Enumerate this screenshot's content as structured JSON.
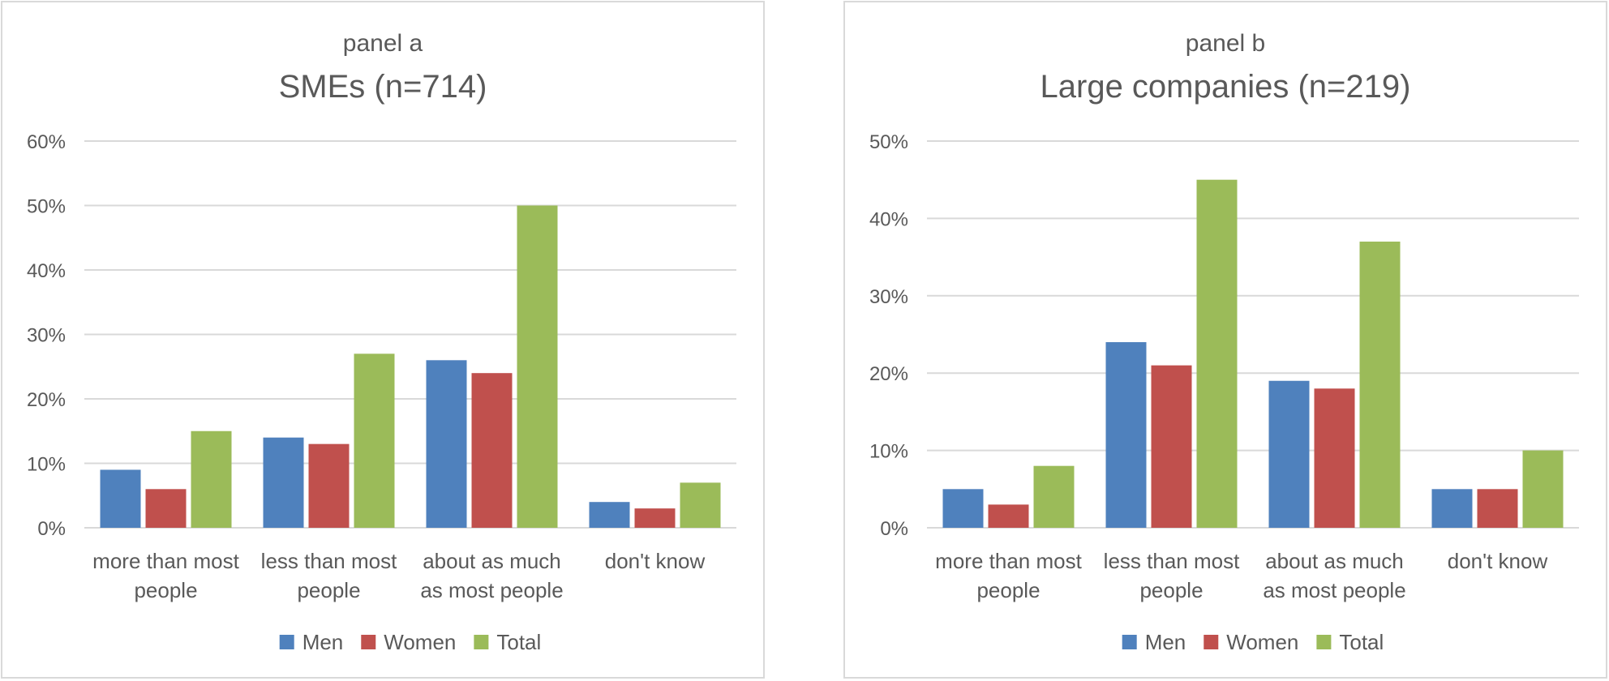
{
  "chart_data": [
    {
      "type": "bar",
      "panel_label": "panel a",
      "title": "SMEs (n=714)",
      "categories": [
        [
          "more than most",
          "people"
        ],
        [
          "less than most",
          "people"
        ],
        [
          "about as much",
          "as most people"
        ],
        [
          "don't know"
        ]
      ],
      "series": [
        {
          "name": "Men",
          "color": "#4f81bd",
          "values": [
            9,
            14,
            26,
            4
          ]
        },
        {
          "name": "Women",
          "color": "#c0504d",
          "values": [
            6,
            13,
            24,
            3
          ]
        },
        {
          "name": "Total",
          "color": "#9bbb59",
          "values": [
            15,
            27,
            50,
            7
          ]
        }
      ],
      "ylim": [
        0,
        60
      ],
      "yticks": [
        "0%",
        "10%",
        "20%",
        "30%",
        "40%",
        "50%",
        "60%"
      ],
      "grid": true,
      "legend": "bottom"
    },
    {
      "type": "bar",
      "panel_label": "panel b",
      "title": "Large companies (n=219)",
      "categories": [
        [
          "more than most",
          "people"
        ],
        [
          "less than most",
          "people"
        ],
        [
          "about as much",
          "as most people"
        ],
        [
          "don't know"
        ]
      ],
      "series": [
        {
          "name": "Men",
          "color": "#4f81bd",
          "values": [
            5,
            24,
            19,
            5
          ]
        },
        {
          "name": "Women",
          "color": "#c0504d",
          "values": [
            3,
            21,
            18,
            5
          ]
        },
        {
          "name": "Total",
          "color": "#9bbb59",
          "values": [
            8,
            45,
            37,
            10
          ]
        }
      ],
      "ylim": [
        0,
        50
      ],
      "yticks": [
        "0%",
        "10%",
        "20%",
        "30%",
        "40%",
        "50%"
      ],
      "grid": true,
      "legend": "bottom"
    }
  ]
}
